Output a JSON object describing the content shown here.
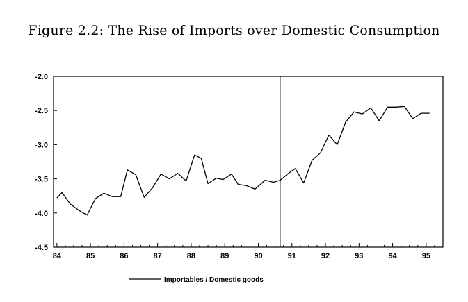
{
  "page": {
    "title": "Figure 2.2: The Rise of Imports over Domestic Consumption"
  },
  "chart_data": {
    "type": "line",
    "title": "",
    "xlabel": "",
    "ylabel": "",
    "xlim": [
      83.9,
      95.5
    ],
    "ylim": [
      -4.5,
      -2.0
    ],
    "x_ticks": [
      {
        "label": "84",
        "value": 84.0
      },
      {
        "label": "85",
        "value": 85.0
      },
      {
        "label": "86",
        "value": 86.0
      },
      {
        "label": "87",
        "value": 87.0
      },
      {
        "label": "88",
        "value": 88.0
      },
      {
        "label": "89",
        "value": 89.0
      },
      {
        "label": "90",
        "value": 90.0
      },
      {
        "label": "91",
        "value": 91.0
      },
      {
        "label": "92",
        "value": 92.0
      },
      {
        "label": "93",
        "value": 93.0
      },
      {
        "label": "94",
        "value": 94.0
      },
      {
        "label": "95",
        "value": 95.0
      }
    ],
    "y_ticks": [
      {
        "label": "-2.0",
        "value": -2.0
      },
      {
        "label": "-2.5",
        "value": -2.5
      },
      {
        "label": "-3.0",
        "value": -3.0
      },
      {
        "label": "-3.5",
        "value": -3.5
      },
      {
        "label": "-4.0",
        "value": -4.0
      },
      {
        "label": "-4.5",
        "value": -4.5
      }
    ],
    "grid": false,
    "legend_position": "bottom-center",
    "vertical_marker_x": 90.65,
    "series": [
      {
        "name": "Importables / Domestic goods",
        "color": "#000000",
        "x": [
          84.0,
          84.15,
          84.4,
          84.65,
          84.9,
          85.15,
          85.4,
          85.65,
          85.9,
          86.1,
          86.35,
          86.6,
          86.85,
          87.1,
          87.35,
          87.6,
          87.85,
          88.1,
          88.3,
          88.5,
          88.75,
          88.95,
          89.2,
          89.4,
          89.65,
          89.9,
          90.2,
          90.45,
          90.65,
          90.9,
          91.1,
          91.35,
          91.6,
          91.85,
          92.1,
          92.35,
          92.6,
          92.85,
          93.1,
          93.35,
          93.6,
          93.85,
          94.1,
          94.35,
          94.6,
          94.85,
          95.1
        ],
        "values": [
          -3.78,
          -3.7,
          -3.87,
          -3.96,
          -4.03,
          -3.79,
          -3.71,
          -3.76,
          -3.76,
          -3.37,
          -3.44,
          -3.77,
          -3.63,
          -3.43,
          -3.5,
          -3.42,
          -3.53,
          -3.15,
          -3.2,
          -3.57,
          -3.49,
          -3.51,
          -3.43,
          -3.58,
          -3.6,
          -3.65,
          -3.52,
          -3.55,
          -3.52,
          -3.42,
          -3.35,
          -3.56,
          -3.23,
          -3.12,
          -2.86,
          -3.0,
          -2.67,
          -2.52,
          -2.55,
          -2.46,
          -2.65,
          -2.45,
          -2.45,
          -2.44,
          -2.62,
          -2.54,
          -2.54
        ]
      }
    ]
  }
}
